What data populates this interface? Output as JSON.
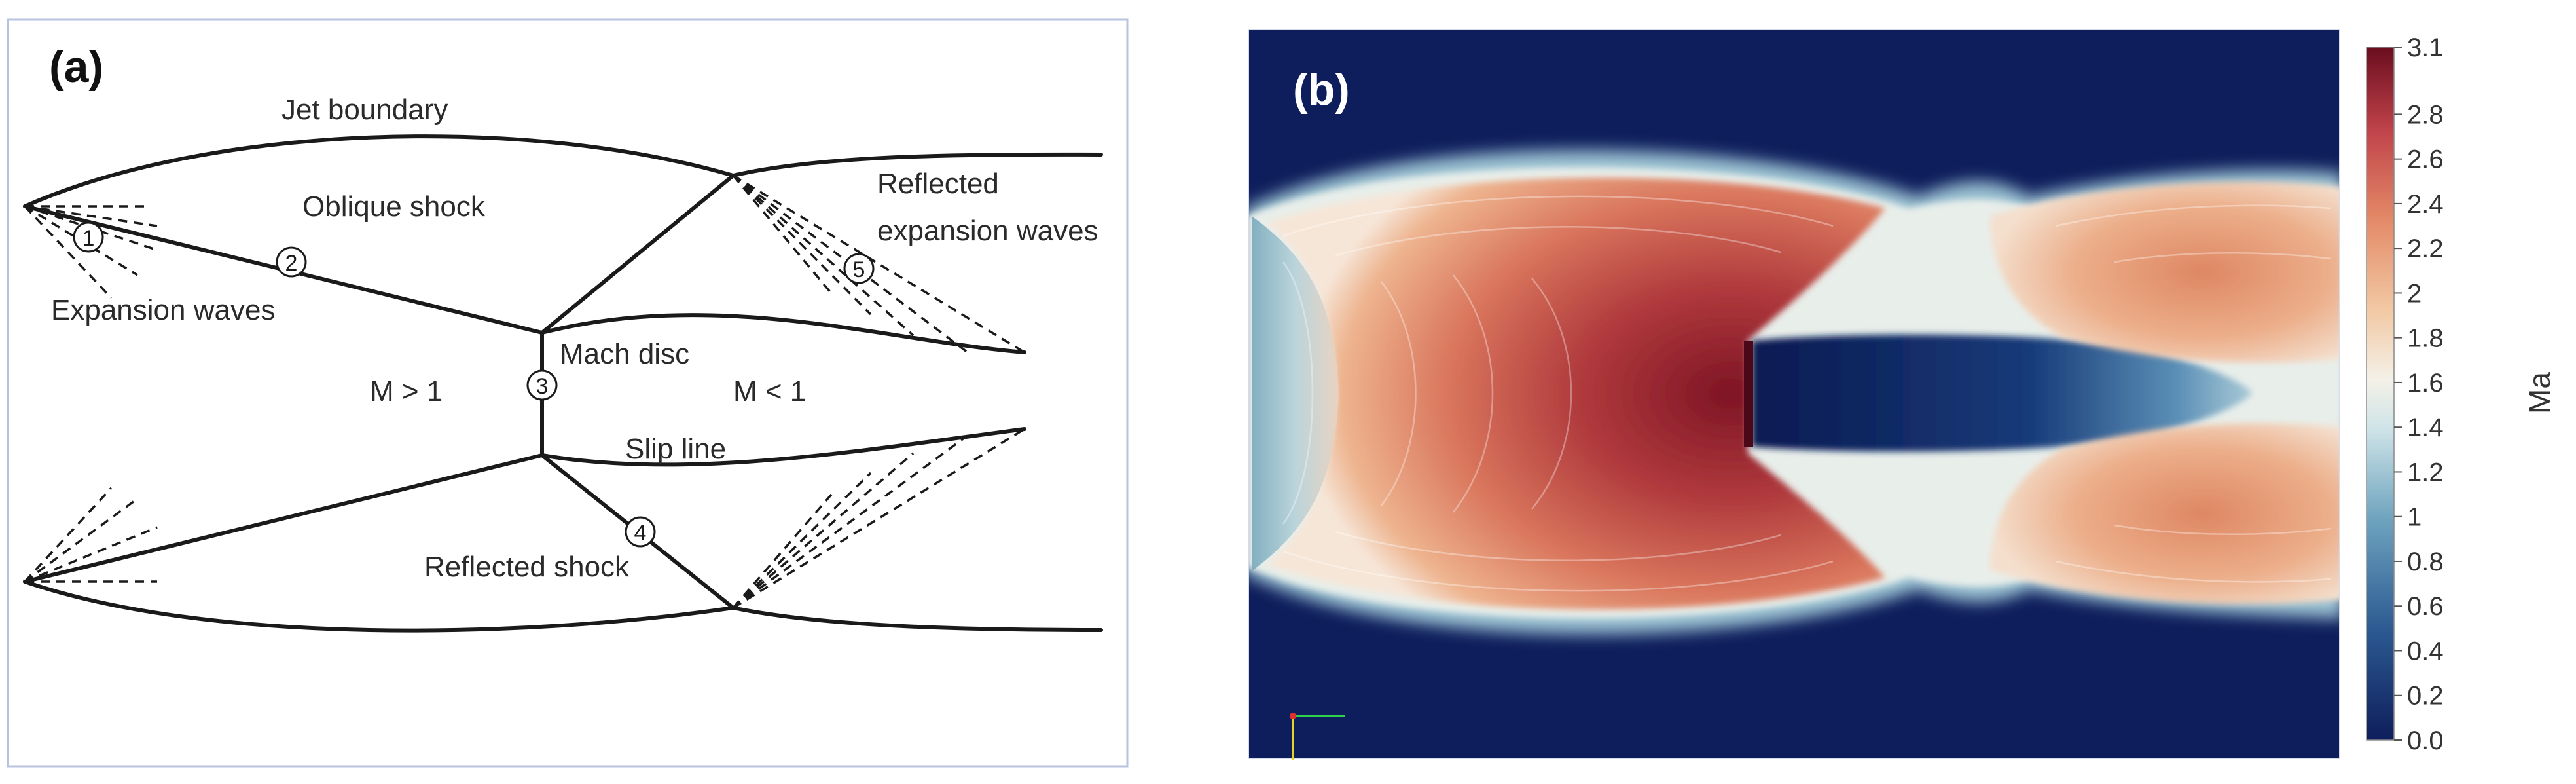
{
  "panel_a": {
    "label": "(a)",
    "texts": {
      "jet_boundary": "Jet boundary",
      "oblique_shock": "Oblique shock",
      "expansion_waves": "Expansion waves",
      "reflected": "Reflected",
      "expansion_waves_2": "expansion waves",
      "mach_disc": "Mach disc",
      "m_gt_1": "M > 1",
      "m_lt_1": "M < 1",
      "slip_line": "Slip line",
      "reflected_shock": "Reflected shock"
    },
    "markers": [
      "1",
      "2",
      "3",
      "4",
      "5"
    ]
  },
  "panel_b": {
    "label": "(b)",
    "colorbar": {
      "title": "Ma",
      "ticks": [
        "3.1",
        "2.8",
        "2.6",
        "2.4",
        "2.2",
        "2",
        "1.8",
        "1.6",
        "1.4",
        "1.2",
        "1",
        "0.8",
        "0.6",
        "0.4",
        "0.2",
        "0.0"
      ],
      "tick_values": [
        3.1,
        2.8,
        2.6,
        2.4,
        2.2,
        2.0,
        1.8,
        1.6,
        1.4,
        1.2,
        1.0,
        0.8,
        0.6,
        0.4,
        0.2,
        0.0
      ],
      "range": [
        0.0,
        3.1
      ]
    },
    "colors": {
      "low": "#0e1e5c",
      "mid": "#f0f0ee",
      "high": "#6a0d1f"
    }
  }
}
